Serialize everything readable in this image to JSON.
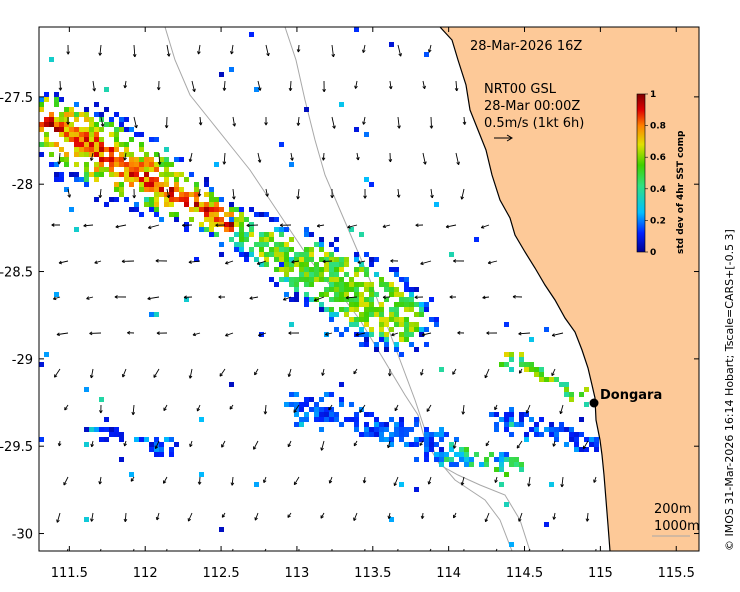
{
  "map": {
    "timestamp_label": "28-Mar-2026 16Z",
    "current_title": "NRT00 GSL",
    "current_time": "28-Mar 00:00Z",
    "current_scale": "0.5m/s (1kt 6h)",
    "place_label": "Dongara",
    "isobath_labels": [
      "200m",
      "1000m"
    ],
    "credit": "© IMOS 31-Mar-2026 16:14 Hobart; Tscale=CARS+[-0.5 3]",
    "x_ticks": [
      "111.5",
      "112",
      "112.5",
      "113",
      "113.5",
      "114",
      "114.5",
      "115",
      "115.5"
    ],
    "y_ticks": [
      "-27.5",
      "-28",
      "-28.5",
      "-29",
      "-29.5",
      "-30"
    ],
    "lon_range": [
      111.3,
      115.65
    ],
    "lat_range": [
      -30.1,
      -27.1
    ],
    "land_color": "#fdc998",
    "colorbar": {
      "label": "std dev of 4hr SST comp",
      "ticks": [
        "0",
        "0.2",
        "0.4",
        "0.6",
        "0.8",
        "1"
      ],
      "range": [
        0,
        1
      ],
      "colors": [
        "#00008f",
        "#0020ff",
        "#00bfff",
        "#30e080",
        "#40d000",
        "#e0e000",
        "#ff8000",
        "#e00000",
        "#800000"
      ]
    }
  }
}
